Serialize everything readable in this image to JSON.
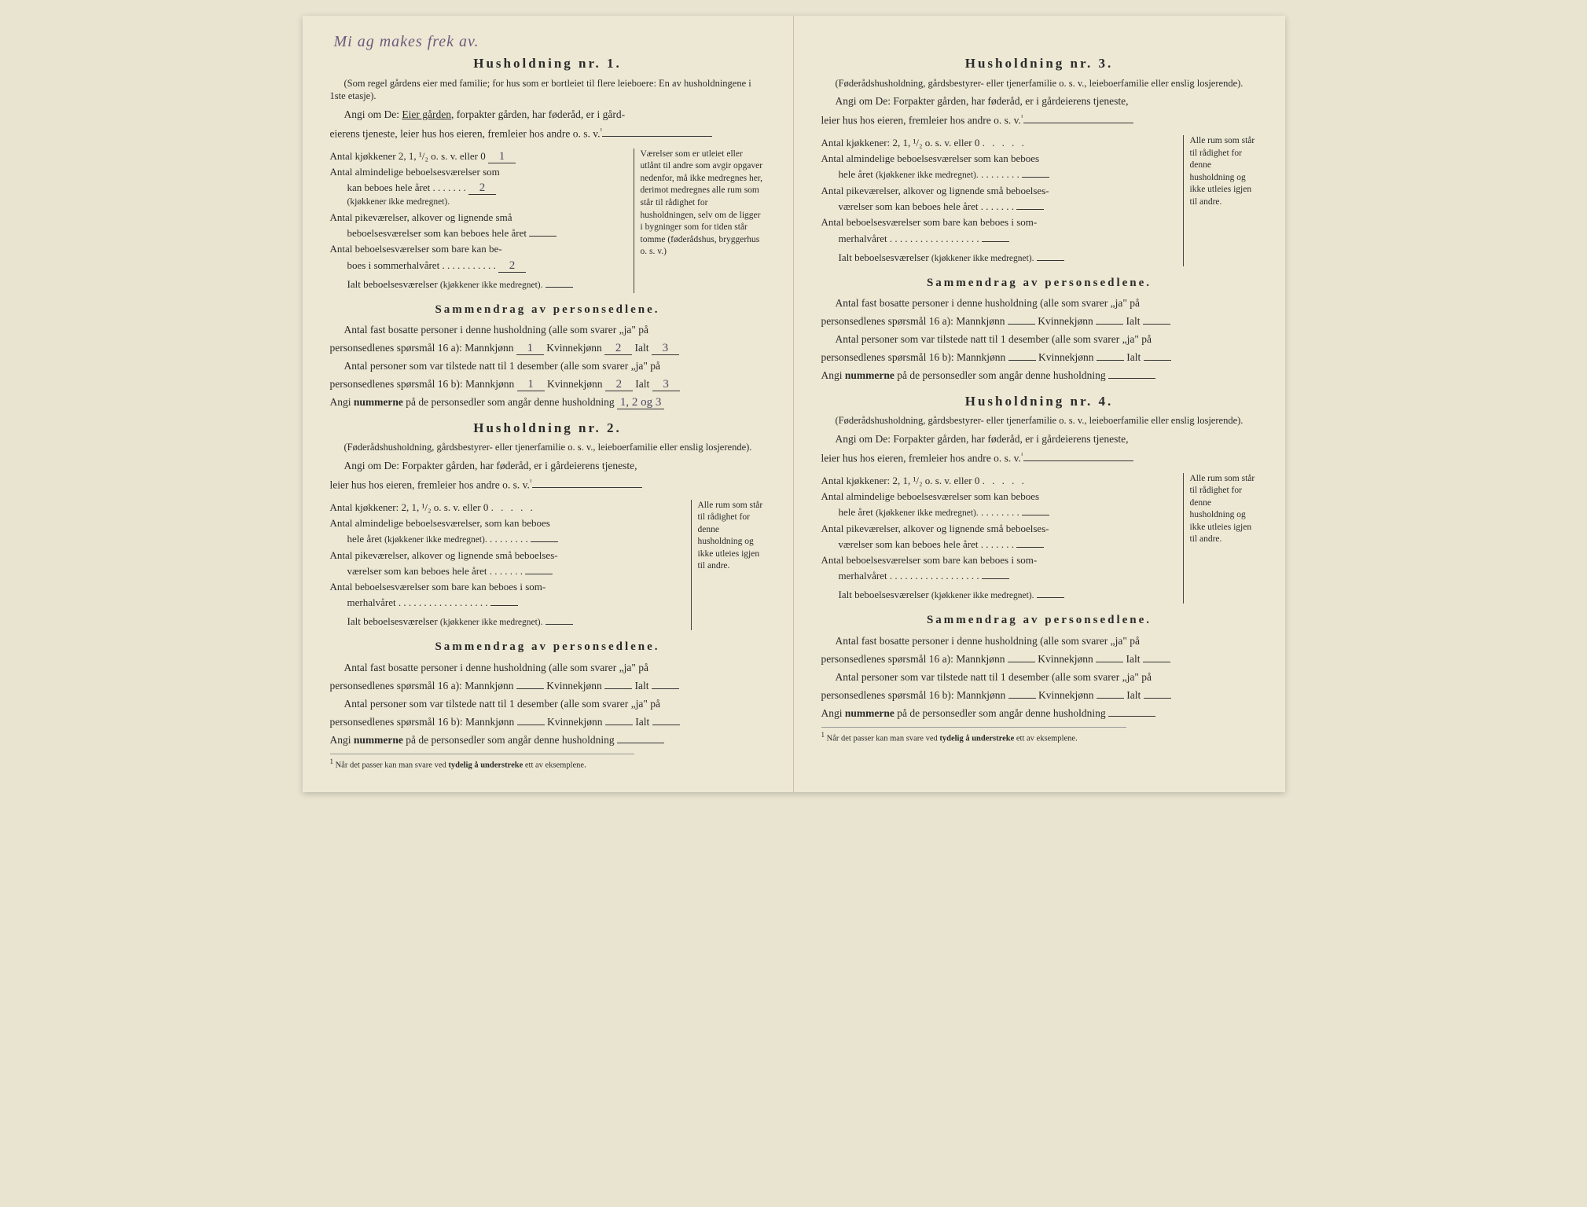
{
  "handwritten_note": "Mi ag makes frek av.",
  "households": [
    {
      "title": "Husholdning nr. 1.",
      "subtitle": "(Som regel gårdens eier med familie; for hus som er bortleiet til flere leieboere: En av husholdningene i 1ste etasje).",
      "angi_prefix": "Angi om De: ",
      "angi_underlined": "Eier gården",
      "angi_rest": ", forpakter gården, har føderåd, er i gård-",
      "angi_line2": "eierens tjeneste, leier hus hos eieren, fremleier hos andre o. s. v.",
      "rooms": {
        "kitchens_label": "Antal kjøkkener 2, 1, ¹/₂ o. s. v. eller 0",
        "kitchens_value": "1",
        "ordinary_label1": "Antal almindelige beboelsesværelser som",
        "ordinary_label2": "kan beboes hele året",
        "ordinary_note": "(kjøkkener ikke medregnet).",
        "ordinary_value": "2",
        "maid_label1": "Antal pikeværelser, alkover og lignende små",
        "maid_label2": "beboelsesværelser som kan beboes hele året",
        "summer_label1": "Antal beboelsesværelser som bare kan be-",
        "summer_label2": "boes i sommerhalvåret",
        "summer_value": "2",
        "ialt_label": "Ialt beboelsesværelser",
        "ialt_note": "(kjøkkener ikke medregnet).",
        "side_note": "Værelser som er utleiet eller utlånt til andre som avgir opgaver nedenfor, må ikke medregnes her, derimot medregnes alle rum som står til rådighet for husholdningen, selv om de ligger i bygninger som for tiden står tomme (føderådshus, bryggerhus o. s. v.)"
      },
      "summary": {
        "title": "Sammendrag av personsedlene.",
        "line1a": "Antal fast bosatte personer i denne husholdning (alle som svarer „ja\" på",
        "line1b_prefix": "personsedlenes spørsmål 16 a): Mannkjønn",
        "mann_a": "1",
        "kvinne_label": "Kvinnekjønn",
        "kvinne_a": "2",
        "ialt_label": "Ialt",
        "ialt_a": "3",
        "line2a": "Antal personer som var tilstede natt til 1 desember (alle som svarer „ja\" på",
        "line2b_prefix": "personsedlenes spørsmål 16 b): Mannkjønn",
        "mann_b": "1",
        "kvinne_b": "2",
        "ialt_b": "3",
        "numbers_label": "Angi ",
        "numbers_bold": "nummerne",
        "numbers_rest": " på de personsedler som angår denne husholdning",
        "numbers_value": "1, 2 og 3"
      }
    },
    {
      "title": "Husholdning nr. 2.",
      "subtitle": "(Føderådshusholdning, gårdsbestyrer- eller tjenerfamilie o. s. v., leieboerfamilie eller enslig losjerende).",
      "angi_full": "Angi om De: Forpakter gården, har føderåd, er i gårdeierens tjeneste,",
      "angi_line2": "leier hus hos eieren, fremleier hos andre o. s. v.",
      "rooms": {
        "kitchens_label": "Antal kjøkkener: 2, 1, ¹/₂ o. s. v. eller 0",
        "ordinary_label1": "Antal almindelige beboelsesværelser, som kan beboes",
        "ordinary_label2": "hele året",
        "ordinary_note": "(kjøkkener ikke medregnet).",
        "maid_label1": "Antal pikeværelser, alkover og lignende små beboelses-",
        "maid_label2": "værelser som kan beboes hele året",
        "summer_label1": "Antal beboelsesværelser som bare kan beboes i som-",
        "summer_label2": "merhalvåret",
        "ialt_label": "Ialt beboelsesværelser",
        "ialt_note": "(kjøkkener ikke medregnet).",
        "side_note": "Alle rum som står til rådighet for denne husholdning og ikke utleies igjen til andre."
      },
      "summary": {
        "title": "Sammendrag av personsedlene.",
        "line1a": "Antal fast bosatte personer i denne husholdning (alle som svarer „ja\" på",
        "line1b_prefix": "personsedlenes spørsmål 16 a): Mannkjønn",
        "kvinne_label": "Kvinnekjønn",
        "ialt_label": "Ialt",
        "line2a": "Antal personer som var tilstede natt til 1 desember (alle som svarer „ja\" på",
        "line2b_prefix": "personsedlenes spørsmål 16 b): Mannkjønn",
        "numbers_label": "Angi ",
        "numbers_bold": "nummerne",
        "numbers_rest": " på de personsedler som angår denne husholdning"
      }
    },
    {
      "title": "Husholdning nr. 3.",
      "subtitle": "(Føderådshusholdning, gårdsbestyrer- eller tjenerfamilie o. s. v., leieboerfamilie eller enslig losjerende).",
      "angi_full": "Angi om De: Forpakter gården, har føderåd, er i gårdeierens tjeneste,",
      "angi_line2": "leier hus hos eieren, fremleier hos andre o. s. v.",
      "rooms": {
        "kitchens_label": "Antal kjøkkener: 2, 1, ¹/₂ o. s. v. eller 0",
        "ordinary_label1": "Antal almindelige beboelsesværelser som kan beboes",
        "ordinary_label2": "hele året",
        "ordinary_note": "(kjøkkener ikke medregnet).",
        "maid_label1": "Antal pikeværelser, alkover og lignende små beboelses-",
        "maid_label2": "værelser som kan beboes hele året",
        "summer_label1": "Antal beboelsesværelser som bare kan beboes i som-",
        "summer_label2": "merhalvåret",
        "ialt_label": "Ialt beboelsesværelser",
        "ialt_note": "(kjøkkener ikke medregnet).",
        "side_note": "Alle rum som står til rådighet for denne husholdning og ikke utleies igjen til andre."
      },
      "summary": {
        "title": "Sammendrag av personsedlene.",
        "line1a": "Antal fast bosatte personer i denne husholdning (alle som svarer „ja\" på",
        "line1b_prefix": "personsedlenes spørsmål 16 a): Mannkjønn",
        "kvinne_label": "Kvinnekjønn",
        "ialt_label": "Ialt",
        "line2a": "Antal personer som var tilstede natt til 1 desember (alle som svarer „ja\" på",
        "line2b_prefix": "personsedlenes spørsmål 16 b): Mannkjønn",
        "numbers_label": "Angi ",
        "numbers_bold": "nummerne",
        "numbers_rest": " på de personsedler som angår denne husholdning"
      }
    },
    {
      "title": "Husholdning nr. 4.",
      "subtitle": "(Føderådshusholdning, gårdsbestyrer- eller tjenerfamilie o. s. v., leieboerfamilie eller enslig losjerende).",
      "angi_full": "Angi om De: Forpakter gården, har føderåd, er i gårdeierens tjeneste,",
      "angi_line2": "leier hus hos eieren, fremleier hos andre o. s. v.",
      "rooms": {
        "kitchens_label": "Antal kjøkkener: 2, 1, ¹/₂ o. s. v. eller 0",
        "ordinary_label1": "Antal almindelige beboelsesværelser som kan beboes",
        "ordinary_label2": "hele året",
        "ordinary_note": "(kjøkkener ikke medregnet).",
        "maid_label1": "Antal pikeværelser, alkover og lignende små beboelses-",
        "maid_label2": "værelser som kan beboes hele året",
        "summer_label1": "Antal beboelsesværelser som bare kan beboes i som-",
        "summer_label2": "merhalvåret",
        "ialt_label": "Ialt beboelsesværelser",
        "ialt_note": "(kjøkkener ikke medregnet).",
        "side_note": "Alle rum som står til rådighet for denne husholdning og ikke utleies igjen til andre."
      },
      "summary": {
        "title": "Sammendrag av personsedlene.",
        "line1a": "Antal fast bosatte personer i denne husholdning (alle som svarer „ja\" på",
        "line1b_prefix": "personsedlenes spørsmål 16 a): Mannkjønn",
        "kvinne_label": "Kvinnekjønn",
        "ialt_label": "Ialt",
        "line2a": "Antal personer som var tilstede natt til 1 desember (alle som svarer „ja\" på",
        "line2b_prefix": "personsedlenes spørsmål 16 b): Mannkjønn",
        "numbers_label": "Angi ",
        "numbers_bold": "nummerne",
        "numbers_rest": " på de personsedler som angår denne husholdning"
      }
    }
  ],
  "footnote": "¹ Når det passer kan man svare ved tydelig å understreke ett av eksemplene.",
  "footnote_sup": "1",
  "footnote_text_before": "Når det passer kan man svare ved ",
  "footnote_bold": "tydelig å understreke",
  "footnote_text_after": " ett av eksemplene.",
  "dots5": ".    .    .    .    .",
  "superscript1": "¹"
}
